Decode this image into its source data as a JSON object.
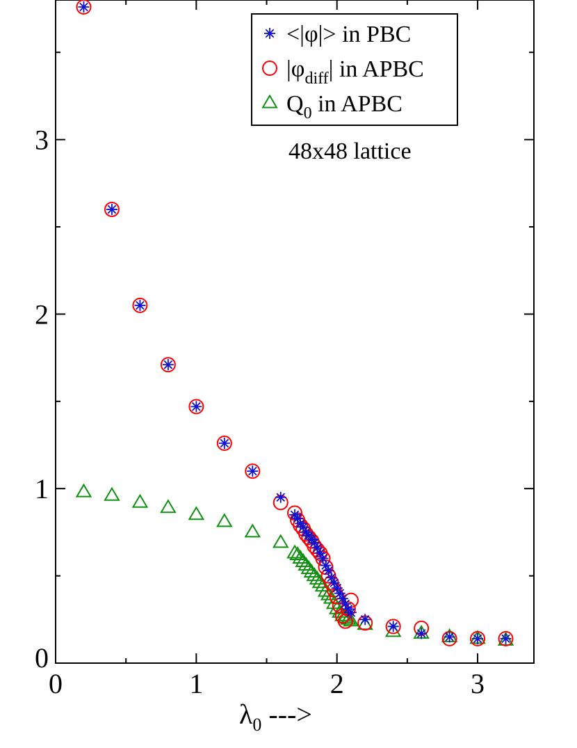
{
  "chart_data": {
    "type": "scatter",
    "title": "",
    "xlabel": "λ",
    "xlabel_sub": "0",
    "xlabel_suffix": " --->",
    "ylabel": "",
    "xlim": [
      0,
      3.4
    ],
    "ylim": [
      0,
      3.8
    ],
    "x_ticks": [
      0,
      1,
      2,
      3
    ],
    "x_tick_labels": [
      "0",
      "1",
      "2",
      "3"
    ],
    "y_ticks": [
      0,
      1,
      2,
      3
    ],
    "y_tick_labels": [
      "0",
      "1",
      "2",
      "3"
    ],
    "grid": false,
    "legend_position": "top-right",
    "annotation": "48x48 lattice",
    "colors": {
      "pbc": "#1010d0",
      "apbc": "#ff0000",
      "q0": "#109010"
    },
    "series": [
      {
        "name": "<|φ|> in PBC",
        "legend": {
          "main": "<|φ|> in PBC",
          "sub": "",
          "tail": ""
        },
        "marker": "asterisk",
        "x": [
          0.2,
          0.4,
          0.6,
          0.8,
          1.0,
          1.2,
          1.4,
          1.6,
          1.7,
          1.72,
          1.74,
          1.76,
          1.78,
          1.8,
          1.82,
          1.84,
          1.86,
          1.88,
          1.9,
          1.92,
          1.94,
          1.96,
          1.98,
          2.0,
          2.02,
          2.04,
          2.06,
          2.08,
          2.1,
          2.2,
          2.4,
          2.6,
          2.8,
          3.0,
          3.2
        ],
        "y": [
          3.76,
          2.6,
          2.05,
          1.71,
          1.47,
          1.26,
          1.1,
          0.95,
          0.85,
          0.83,
          0.8,
          0.78,
          0.75,
          0.73,
          0.71,
          0.69,
          0.66,
          0.63,
          0.6,
          0.56,
          0.53,
          0.49,
          0.46,
          0.43,
          0.4,
          0.37,
          0.34,
          0.31,
          0.29,
          0.25,
          0.21,
          0.17,
          0.15,
          0.14,
          0.14
        ]
      },
      {
        "name": "|φdiff| in APBC",
        "legend": {
          "main": "|φ",
          "sub": "diff",
          "tail": "| in APBC"
        },
        "marker": "circle",
        "x": [
          0.2,
          0.4,
          0.6,
          0.8,
          1.0,
          1.2,
          1.4,
          1.6,
          1.7,
          1.72,
          1.74,
          1.76,
          1.78,
          1.8,
          1.82,
          1.84,
          1.86,
          1.88,
          1.9,
          1.92,
          1.94,
          1.96,
          1.98,
          2.0,
          2.02,
          2.04,
          2.06,
          2.08,
          2.1,
          2.2,
          2.4,
          2.6,
          2.8,
          3.0,
          3.2
        ],
        "y": [
          3.76,
          2.6,
          2.05,
          1.71,
          1.47,
          1.26,
          1.1,
          0.92,
          0.86,
          0.82,
          0.79,
          0.77,
          0.74,
          0.72,
          0.7,
          0.67,
          0.65,
          0.63,
          0.6,
          0.55,
          0.5,
          0.46,
          0.42,
          0.38,
          0.33,
          0.27,
          0.24,
          0.31,
          0.36,
          0.23,
          0.21,
          0.2,
          0.14,
          0.14,
          0.14
        ]
      },
      {
        "name": "Q0 in APBC",
        "legend": {
          "main": "Q",
          "sub": "0",
          "tail": " in APBC"
        },
        "marker": "triangle",
        "x": [
          0.2,
          0.4,
          0.6,
          0.8,
          1.0,
          1.2,
          1.4,
          1.6,
          1.7,
          1.72,
          1.74,
          1.76,
          1.78,
          1.8,
          1.82,
          1.84,
          1.86,
          1.88,
          1.9,
          1.92,
          1.94,
          1.96,
          1.98,
          2.0,
          2.02,
          2.04,
          2.06,
          2.08,
          2.1,
          2.2,
          2.4,
          2.6,
          2.8,
          3.0,
          3.2
        ],
        "y": [
          0.98,
          0.96,
          0.92,
          0.89,
          0.85,
          0.81,
          0.75,
          0.69,
          0.63,
          0.62,
          0.6,
          0.58,
          0.56,
          0.54,
          0.52,
          0.5,
          0.48,
          0.46,
          0.44,
          0.41,
          0.39,
          0.37,
          0.34,
          0.31,
          0.29,
          0.27,
          0.26,
          0.25,
          0.24,
          0.22,
          0.18,
          0.17,
          0.15,
          0.14,
          0.13
        ]
      }
    ]
  }
}
